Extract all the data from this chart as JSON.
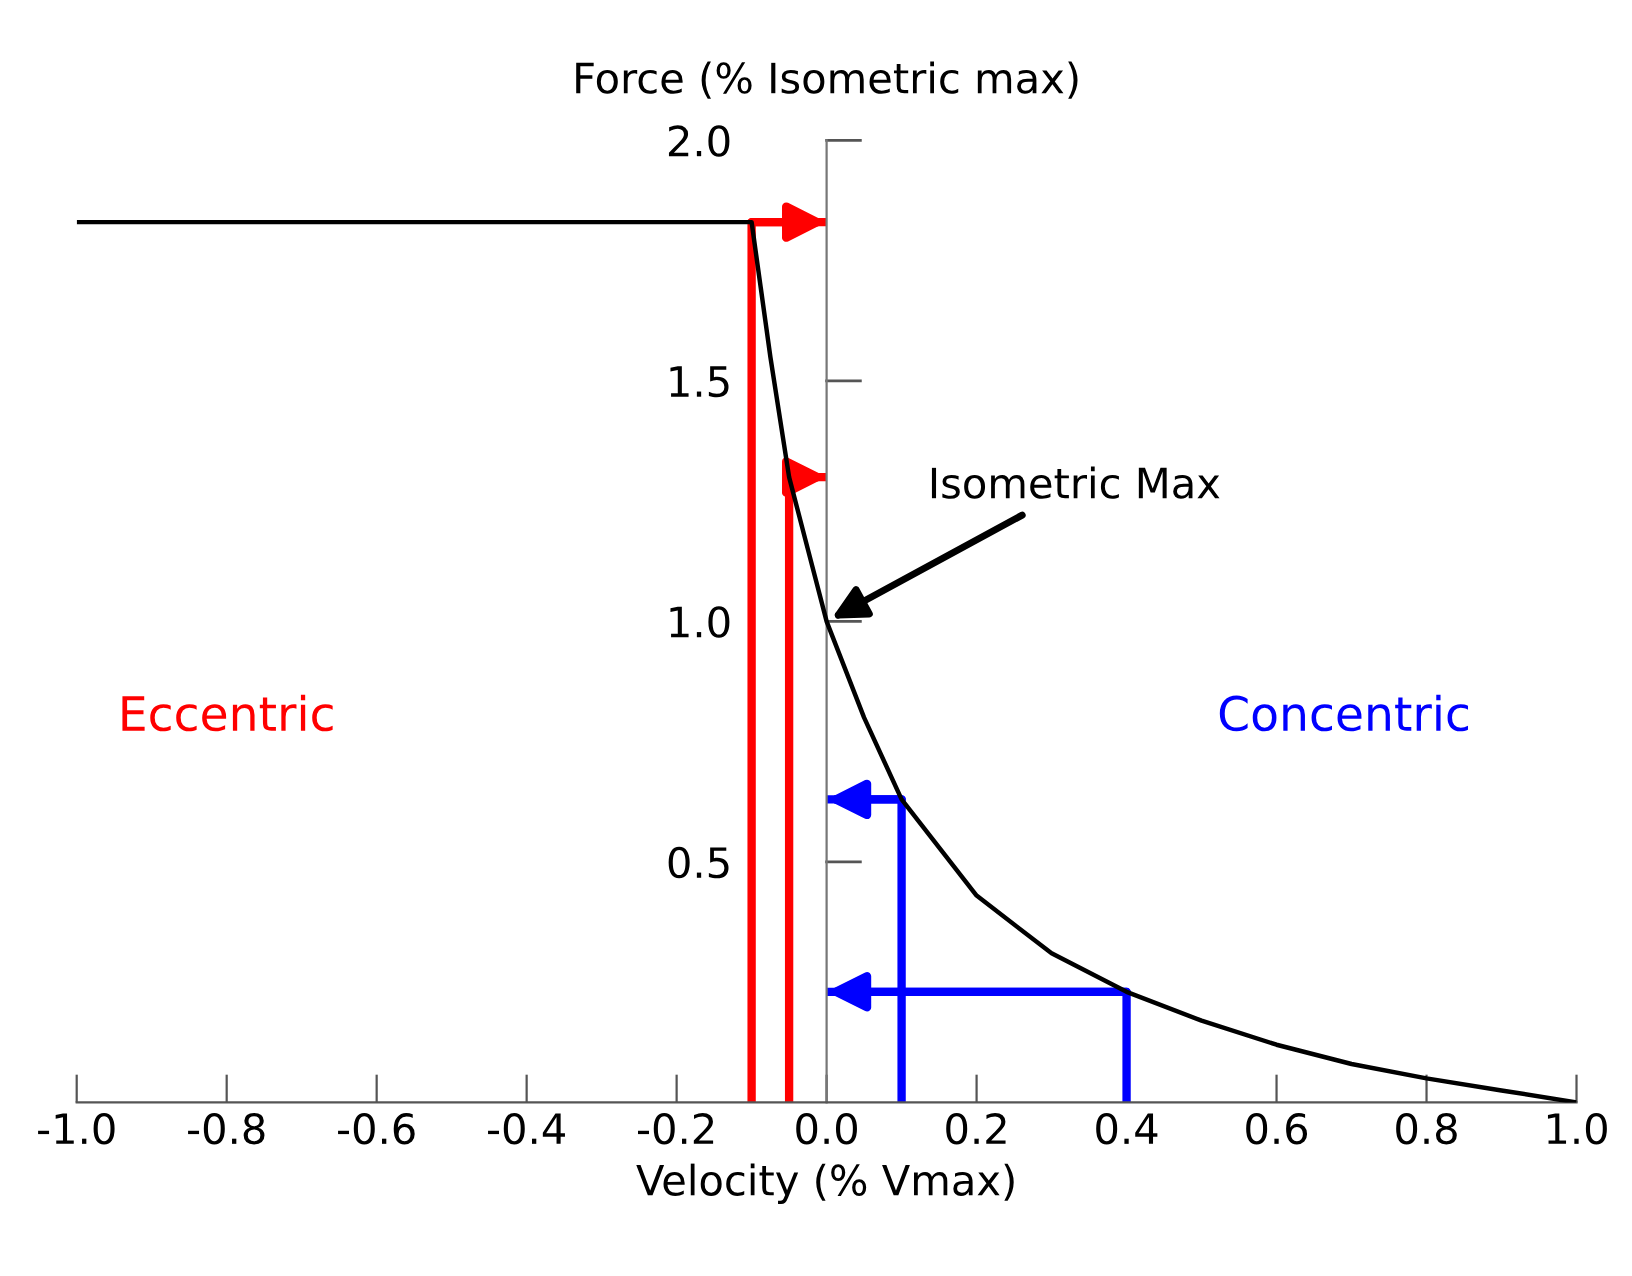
{
  "chart_data": {
    "type": "line",
    "xlabel": "Velocity (% Vmax)",
    "ylabel": "Force (% Isometric max)",
    "xlim": [
      -1.0,
      1.0
    ],
    "ylim": [
      0,
      2.0
    ],
    "xticks": [
      {
        "value": -1.0,
        "label": "-1.0"
      },
      {
        "value": -0.8,
        "label": "-0.8"
      },
      {
        "value": -0.6,
        "label": "-0.6"
      },
      {
        "value": -0.4,
        "label": "-0.4"
      },
      {
        "value": -0.2,
        "label": "-0.2"
      },
      {
        "value": 0,
        "label": "0.0"
      },
      {
        "value": 0.2,
        "label": "0.2"
      },
      {
        "value": 0.4,
        "label": "0.4"
      },
      {
        "value": 0.6,
        "label": "0.6"
      },
      {
        "value": 0.8,
        "label": "0.8"
      },
      {
        "value": 1.0,
        "label": "1.0"
      }
    ],
    "yticks": [
      0.5,
      {
        "value": 1.0,
        "label": "1.0"
      },
      1.5,
      {
        "value": 2.0,
        "label": "2.0"
      }
    ],
    "grid": false,
    "marker": "none",
    "line_style": "solid",
    "annotations": [
      {
        "text": "Isometric Max",
        "x": 0,
        "y": 1.0
      }
    ],
    "series": [
      {
        "color": "#000000",
        "x": [
          -1.0,
          -0.1,
          -0.075,
          -0.05,
          -0.025,
          0,
          0.05,
          0.1,
          0.2,
          0.3,
          0.4,
          0.5,
          0.6,
          0.7,
          0.8,
          0.9,
          1.0
        ],
        "values": [
          1.83,
          1.83,
          1.55,
          1.3,
          1.15,
          1.0,
          0.8,
          0.63,
          0.43,
          0.31,
          0.23,
          0.17,
          0.12,
          0.08,
          0.05,
          0.025,
          0
        ]
      },
      {
        "name": "Eccentric",
        "color": "#ff0000",
        "x": [
          -0.1,
          -0.1,
          0
        ],
        "values": [
          0,
          1.83,
          1.83
        ]
      },
      {
        "color": "#ff0000",
        "x": [
          -0.05,
          -0.05,
          0
        ],
        "values": [
          0,
          1.3,
          1.3
        ]
      },
      {
        "name": "Concentric",
        "color": "#0000ff",
        "x": [
          0.1,
          0.1,
          0
        ],
        "values": [
          0,
          0.63,
          0.63
        ]
      },
      {
        "color": "#0000ff",
        "x": [
          0.4,
          0.4,
          0
        ],
        "values": [
          0,
          0.23,
          0.23
        ]
      }
    ]
  }
}
